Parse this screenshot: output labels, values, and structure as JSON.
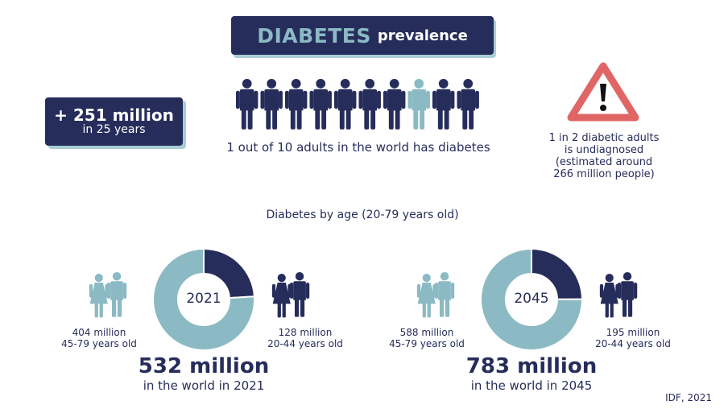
{
  "header": {
    "title_main": "DIABETES",
    "title_sub": "prevalence"
  },
  "growth": {
    "value": "+ 251 million",
    "period": "in 25 years"
  },
  "people": {
    "total": 10,
    "highlighted_index": 7,
    "caption": "1 out of 10 adults in the world has diabetes"
  },
  "warning": {
    "icon": "warning-triangle-icon",
    "lines": [
      "1 in 2 diabetic adults",
      "is undiagnosed",
      "(estimated around",
      "266 million people)"
    ]
  },
  "section_title": "Diabetes by age (20-79 years old)",
  "source": "IDF, 2021",
  "colors": {
    "navy": "#262d5b",
    "teal": "#8bbac4",
    "red": "#e06666"
  },
  "chart_data": [
    {
      "type": "pie",
      "title": "2021",
      "categories": [
        "20-44 years old",
        "45-79 years old"
      ],
      "values": [
        128,
        404
      ],
      "unit": "million",
      "labels": {
        "young_value": "128 million",
        "young_age": "20-44 years old",
        "old_value": "404 million",
        "old_age": "45-79 years old"
      },
      "total": "532 million",
      "total_caption": "in the world in 2021"
    },
    {
      "type": "pie",
      "title": "2045",
      "categories": [
        "20-44 years old",
        "45-79 years old"
      ],
      "values": [
        195,
        588
      ],
      "unit": "million",
      "labels": {
        "young_value": "195 million",
        "young_age": "20-44 years old",
        "old_value": "588 million",
        "old_age": "45-79 years old"
      },
      "total": "783 million",
      "total_caption": "in the world in 2045"
    }
  ]
}
